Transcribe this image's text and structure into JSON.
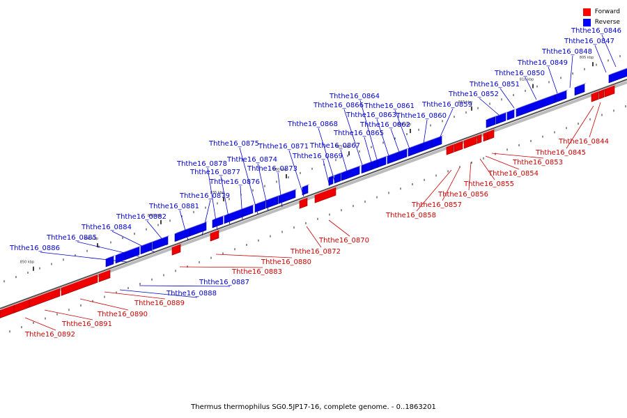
{
  "legend": {
    "forward_label": "Forward",
    "reverse_label": "Reverse",
    "forward_color": "#ff0000",
    "reverse_color": "#0000ff"
  },
  "caption": "Thermus thermophilus SG0.5JP17-16, complete genome. - 0..1863201",
  "scale_labels": [
    "805 kbp",
    "810 kbp",
    "815 kbp",
    "820 kbp",
    "825 kbp",
    "830 kbp",
    "835 kbp",
    "840 kbp",
    "845 kbp",
    "850 kbp"
  ],
  "forward_genes": [
    "Ththe16_0844",
    "Ththe16_0845",
    "Ththe16_0853",
    "Ththe16_0854",
    "Ththe16_0855",
    "Ththe16_0856",
    "Ththe16_0857",
    "Ththe16_0858",
    "Ththe16_0870",
    "Ththe16_0872",
    "Ththe16_0880",
    "Ththe16_0883",
    "Ththe16_0889",
    "Ththe16_0890",
    "Ththe16_0891",
    "Ththe16_0892"
  ],
  "reverse_genes": [
    "Ththe16_0846",
    "Ththe16_0847",
    "Ththe16_0848",
    "Ththe16_0849",
    "Ththe16_0850",
    "Ththe16_0851",
    "Ththe16_0852",
    "Ththe16_0859",
    "Ththe16_0860",
    "Ththe16_0861",
    "Ththe16_0862",
    "Ththe16_0863",
    "Ththe16_0864",
    "Ththe16_0865",
    "Ththe16_0866",
    "Ththe16_0867",
    "Ththe16_0868",
    "Ththe16_0869",
    "Ththe16_0871",
    "Ththe16_0873",
    "Ththe16_0874",
    "Ththe16_0875",
    "Ththe16_0876",
    "Ththe16_0877",
    "Ththe16_0878",
    "Ththe16_0879",
    "Ththe16_0881",
    "Ththe16_0882",
    "Ththe16_0884",
    "Ththe16_0885",
    "Ththe16_0886",
    "Ththe16_0887",
    "Ththe16_0888"
  ]
}
